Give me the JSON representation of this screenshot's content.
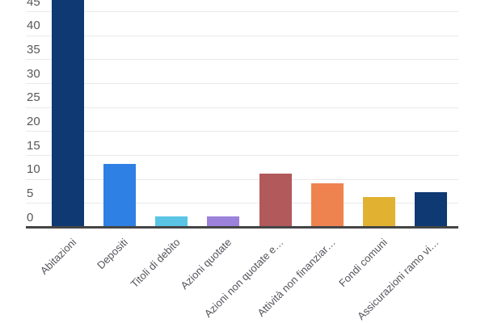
{
  "chart_data": {
    "type": "bar",
    "title": "",
    "xlabel": "",
    "ylabel": "",
    "legend": "none",
    "grid": true,
    "categories": [
      "Abitazioni",
      "Depositi",
      "Titoli di debito",
      "Azioni quotate",
      "Azioni non quotate e…",
      "Attività non finanziar…",
      "Fondi comuni",
      "Assicurazioni ramo vi…"
    ],
    "values": [
      48,
      13,
      2,
      2,
      11,
      9,
      6,
      7
    ],
    "first_bar_clipped_at_top": true,
    "bar_colors": [
      "#0e3973",
      "#2f80e4",
      "#5ac4e5",
      "#9c82da",
      "#b2595c",
      "#ee8350",
      "#e1b232",
      "#0e3973"
    ],
    "yticks": [
      0,
      5,
      10,
      15,
      20,
      25,
      30,
      35,
      40,
      45
    ],
    "ylim_visible": [
      0,
      47.5
    ],
    "colors": {
      "gridline": "#e9e9ea",
      "axis": "#454545",
      "y_tick_label": "#56575b",
      "x_tick_label": "#53545a",
      "background": "#ffffff"
    }
  }
}
